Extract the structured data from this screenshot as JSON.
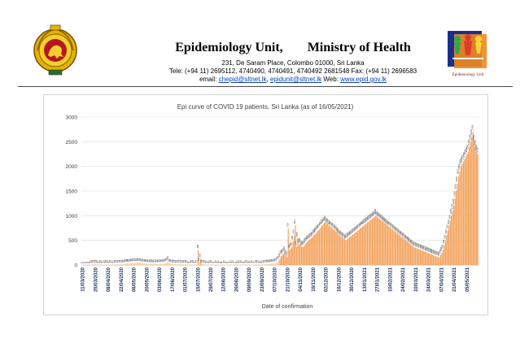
{
  "header": {
    "unit": "Epidemiology Unit,",
    "ministry": "Ministry of Health",
    "address": "231, De Saram Place, Colombo 01000, Sri Lanka",
    "tel": "Tele: (+94 11) 2695112, 4740490, 4740491, 4740492 2681548  Fax: (+94 11) 2696583",
    "email_prefix": "email: ",
    "email1": "chepid@sltnet.lk",
    "email_sep": ", ",
    "email2": "epidunit@sltnet.lk",
    "web_prefix": " Web: ",
    "web": "www.epid.gov.lk",
    "logo_caption": "Epidemiology Unit"
  },
  "colors": {
    "bar": "#f4a460",
    "bar_light": "#f9cfa6",
    "grid": "#d9d9d9",
    "tick_label": "#1f3864",
    "link": "#0b3fb5"
  },
  "chart_data": {
    "type": "bar",
    "title": "Epi curve of COVID 19 patients, Sri Lanka  (as of 16/05/2021)",
    "xlabel": "Date of confirmation",
    "ylabel": "",
    "ylim": [
      0,
      3000
    ],
    "yticks": [
      0,
      500,
      1000,
      1500,
      2000,
      2500,
      3000
    ],
    "grid": true,
    "x_tick_labels": [
      "11/03/2020",
      "25/03/2020",
      "08/04/2020",
      "22/04/2020",
      "06/05/2020",
      "20/05/2020",
      "03/06/2020",
      "17/06/2020",
      "01/07/2020",
      "15/07/2020",
      "29/07/2020",
      "12/08/2020",
      "26/08/2020",
      "09/09/2020",
      "23/09/2020",
      "07/10/2020",
      "21/10/2020",
      "04/11/2020",
      "18/11/2020",
      "02/12/2020",
      "16/12/2020",
      "30/12/2020",
      "13/01/2021",
      "27/01/2021",
      "10/02/2021",
      "24/02/2021",
      "10/03/2021",
      "24/03/2021",
      "07/04/2021",
      "21/04/2021",
      "05/05/2021"
    ],
    "series": [
      {
        "values": [
          2,
          1,
          3,
          2,
          5,
          4,
          6,
          8,
          10,
          12,
          15,
          14,
          18,
          12,
          9,
          11,
          10,
          8,
          13,
          9,
          14,
          10,
          12,
          8,
          15,
          11,
          9,
          13,
          10,
          16,
          12,
          14,
          18,
          15,
          20,
          22,
          25,
          30,
          35,
          28,
          32,
          40,
          45,
          38,
          50,
          42,
          46,
          55,
          48,
          52,
          40,
          36,
          33,
          30,
          28,
          25,
          22,
          20,
          26,
          24,
          21,
          27,
          23,
          20,
          18,
          25,
          22,
          30,
          26,
          34,
          40,
          60,
          88,
          35,
          28,
          22,
          18,
          15,
          17,
          14,
          12,
          15,
          19,
          13,
          10,
          12,
          16,
          14,
          11,
          9,
          8,
          12,
          10,
          14,
          9,
          11,
          13,
          300,
          55,
          120,
          20,
          16,
          12,
          10,
          9,
          11,
          8,
          10,
          12,
          9,
          7,
          8,
          10,
          9,
          11,
          8,
          6,
          9,
          7,
          10,
          8,
          6,
          9,
          7,
          11,
          8,
          10,
          7,
          6,
          9,
          12,
          8,
          10,
          11,
          9,
          7,
          8,
          10,
          12,
          9,
          11,
          8,
          10,
          9,
          7,
          12,
          10,
          14,
          9,
          11,
          8,
          10,
          12,
          15,
          18,
          20,
          22,
          25,
          28,
          30,
          35,
          40,
          55,
          70,
          95,
          120,
          180,
          200,
          230,
          260,
          200,
          160,
          739,
          300,
          330,
          360,
          480,
          600,
          803,
          370,
          550,
          410,
          430,
          380,
          360,
          380,
          420,
          450,
          480,
          500,
          520,
          540,
          560,
          600,
          620,
          640,
          680,
          700,
          720,
          760,
          800,
          820,
          856,
          880,
          850,
          830,
          800,
          780,
          760,
          740,
          720,
          700,
          680,
          650,
          620,
          600,
          580,
          560,
          540,
          520,
          500,
          520,
          540,
          560,
          580,
          600,
          620,
          640,
          660,
          680,
          700,
          720,
          740,
          760,
          780,
          800,
          820,
          840,
          860,
          880,
          900,
          920,
          940,
          960,
          980,
          1000,
          980,
          960,
          940,
          920,
          900,
          880,
          860,
          840,
          820,
          800,
          780,
          760,
          740,
          720,
          700,
          680,
          660,
          640,
          620,
          600,
          580,
          560,
          540,
          520,
          500,
          480,
          460,
          440,
          420,
          400,
          380,
          360,
          350,
          340,
          330,
          320,
          310,
          300,
          290,
          280,
          270,
          260,
          250,
          240,
          230,
          220,
          210,
          200,
          190,
          180,
          170,
          160,
          150,
          200,
          250,
          300,
          400,
          500,
          600,
          700,
          800,
          900,
          1000,
          1100,
          1200,
          1350,
          1500,
          1650,
          1800,
          1900,
          2000,
          2050,
          2100,
          2150,
          2200,
          2250,
          2300,
          2400,
          2500,
          2600,
          2700,
          2500,
          2400,
          2300,
          2250
        ]
      }
    ],
    "annotations": []
  }
}
